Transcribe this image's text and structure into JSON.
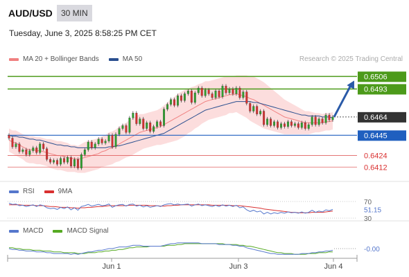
{
  "header": {
    "symbol": "AUD/USD",
    "timeframe": "30 MIN",
    "datetime": "Tuesday, June 3, 2025 8:58:25 PM CET",
    "credit": "Research © 2025 Trading Central"
  },
  "colors": {
    "ma20": "#f08080",
    "bollinger_fill": "#fcd9d9",
    "ma50": "#2a4f8f",
    "resistance": "#4c9a1a",
    "support": "#1f5fbf",
    "pivot_line": "#e06060",
    "arrow": "#2a5aa8",
    "candle_up": "#2ea32e",
    "candle_down": "#d93030",
    "rsi": "#5577cc",
    "rsi_ma": "#d93030",
    "macd": "#5577cc",
    "macd_signal": "#55aa22"
  },
  "chart_data": [
    {
      "type": "candlestick",
      "panel": "price",
      "legend": [
        {
          "name": "MA 20 + Bollinger Bands",
          "color": "#f08080"
        },
        {
          "name": "MA 50",
          "color": "#2a4f8f"
        }
      ],
      "x_ticks": [
        "Jun 1",
        "Jun 3",
        "Jun 4"
      ],
      "ylim": [
        0.64,
        0.6512
      ],
      "levels": [
        {
          "value": 0.6506,
          "label": "0.6506",
          "kind": "resistance"
        },
        {
          "value": 0.6493,
          "label": "0.6493",
          "kind": "resistance"
        },
        {
          "value": 0.6464,
          "label": "0.6464",
          "kind": "current"
        },
        {
          "value": 0.6445,
          "label": "0.6445",
          "kind": "support"
        },
        {
          "value": 0.6424,
          "label": "0.6424",
          "kind": "pivot"
        },
        {
          "value": 0.6412,
          "label": "0.6412",
          "kind": "pivot"
        }
      ],
      "closes": [
        0.6442,
        0.6433,
        0.6436,
        0.6428,
        0.643,
        0.6425,
        0.6429,
        0.6432,
        0.6427,
        0.6436,
        0.6431,
        0.642,
        0.6417,
        0.6419,
        0.6415,
        0.6421,
        0.6417,
        0.6422,
        0.6413,
        0.642,
        0.6411,
        0.6425,
        0.643,
        0.6438,
        0.6432,
        0.6436,
        0.6441,
        0.6437,
        0.6439,
        0.6445,
        0.6433,
        0.6446,
        0.6452,
        0.6455,
        0.6448,
        0.6463,
        0.6468,
        0.6457,
        0.6462,
        0.6452,
        0.6458,
        0.6449,
        0.6454,
        0.6459,
        0.6455,
        0.6472,
        0.6477,
        0.6482,
        0.6476,
        0.6486,
        0.6481,
        0.6488,
        0.6491,
        0.6479,
        0.6489,
        0.6494,
        0.6486,
        0.6492,
        0.6488,
        0.6484,
        0.6491,
        0.6485,
        0.6496,
        0.6489,
        0.6493,
        0.6488,
        0.6494,
        0.6484,
        0.649,
        0.6478,
        0.647,
        0.6475,
        0.6467,
        0.647,
        0.6456,
        0.6462,
        0.6455,
        0.6459,
        0.6453,
        0.6457,
        0.6454,
        0.6459,
        0.6455,
        0.6457,
        0.6453,
        0.6458,
        0.6452,
        0.6456,
        0.6464,
        0.6456,
        0.6462,
        0.6458,
        0.6466,
        0.6461,
        0.6464
      ],
      "ma20": [
        0.644,
        0.6438,
        0.6437,
        0.6435,
        0.6433,
        0.6431,
        0.643,
        0.643,
        0.6429,
        0.6429,
        0.6428,
        0.6427,
        0.6426,
        0.6425,
        0.6424,
        0.6424,
        0.6423,
        0.6422,
        0.6421,
        0.6421,
        0.642,
        0.6421,
        0.6422,
        0.6423,
        0.6424,
        0.6425,
        0.6426,
        0.6428,
        0.6429,
        0.6431,
        0.6432,
        0.6434,
        0.6436,
        0.6438,
        0.644,
        0.6442,
        0.6444,
        0.6446,
        0.6448,
        0.6449,
        0.645,
        0.6451,
        0.6452,
        0.6453,
        0.6454,
        0.6456,
        0.6458,
        0.646,
        0.6462,
        0.6464,
        0.6466,
        0.6468,
        0.647,
        0.6472,
        0.6474,
        0.6476,
        0.6478,
        0.648,
        0.6481,
        0.6482,
        0.6483,
        0.6484,
        0.6485,
        0.6486,
        0.6487,
        0.6487,
        0.6488,
        0.6487,
        0.6486,
        0.6485,
        0.6483,
        0.6482,
        0.648,
        0.6478,
        0.6476,
        0.6474,
        0.6472,
        0.647,
        0.6468,
        0.6466,
        0.6464,
        0.6463,
        0.6462,
        0.6461,
        0.646,
        0.6459,
        0.6458,
        0.6458,
        0.6458,
        0.6458,
        0.6458,
        0.6458,
        0.6459,
        0.6459,
        0.646
      ],
      "band_width": [
        0.0012,
        0.0012,
        0.0013,
        0.0013,
        0.0013,
        0.0014,
        0.0014,
        0.0014,
        0.0014,
        0.0014,
        0.0014,
        0.0014,
        0.0015,
        0.0015,
        0.0015,
        0.0015,
        0.0015,
        0.0015,
        0.0014,
        0.0014,
        0.0014,
        0.0015,
        0.0016,
        0.0016,
        0.0016,
        0.0016,
        0.0016,
        0.0016,
        0.0016,
        0.0017,
        0.0017,
        0.0017,
        0.0018,
        0.0018,
        0.0018,
        0.0019,
        0.0019,
        0.0019,
        0.0019,
        0.0018,
        0.0018,
        0.0018,
        0.0018,
        0.0018,
        0.0019,
        0.002,
        0.0021,
        0.0022,
        0.0023,
        0.0024,
        0.0024,
        0.0024,
        0.0023,
        0.0023,
        0.0022,
        0.0022,
        0.0021,
        0.0021,
        0.002,
        0.002,
        0.002,
        0.002,
        0.002,
        0.002,
        0.0019,
        0.0019,
        0.0019,
        0.002,
        0.0021,
        0.0022,
        0.0023,
        0.0024,
        0.0024,
        0.0024,
        0.0024,
        0.0023,
        0.0022,
        0.0021,
        0.002,
        0.0019,
        0.0018,
        0.0017,
        0.0016,
        0.0015,
        0.0014,
        0.0013,
        0.0012,
        0.0012,
        0.0011,
        0.001,
        0.001,
        0.0009,
        0.0009,
        0.0009,
        0.0009
      ],
      "ma50": [
        0.6445,
        0.6444,
        0.6444,
        0.6443,
        0.6443,
        0.6442,
        0.6441,
        0.6441,
        0.644,
        0.644,
        0.6439,
        0.6438,
        0.6437,
        0.6436,
        0.6435,
        0.6435,
        0.6434,
        0.6434,
        0.6433,
        0.6433,
        0.6432,
        0.6432,
        0.6432,
        0.6432,
        0.6432,
        0.6432,
        0.6432,
        0.6432,
        0.6432,
        0.6433,
        0.6433,
        0.6434,
        0.6434,
        0.6435,
        0.6436,
        0.6437,
        0.6438,
        0.6439,
        0.644,
        0.6441,
        0.6442,
        0.6443,
        0.6444,
        0.6445,
        0.6446,
        0.6447,
        0.6449,
        0.6451,
        0.6453,
        0.6455,
        0.6457,
        0.6459,
        0.6461,
        0.6463,
        0.6465,
        0.6467,
        0.6469,
        0.6471,
        0.6472,
        0.6473,
        0.6474,
        0.6475,
        0.6476,
        0.6477,
        0.6478,
        0.6479,
        0.648,
        0.648,
        0.648,
        0.648,
        0.648,
        0.6479,
        0.6479,
        0.6478,
        0.6477,
        0.6476,
        0.6475,
        0.6474,
        0.6473,
        0.6472,
        0.6471,
        0.647,
        0.6469,
        0.6468,
        0.6467,
        0.6466,
        0.6466,
        0.6465,
        0.6465,
        0.6465,
        0.6465,
        0.6464,
        0.6464,
        0.6464,
        0.6463
      ]
    },
    {
      "type": "line",
      "panel": "rsi",
      "legend": [
        {
          "name": "RSI",
          "color": "#5577cc"
        },
        {
          "name": "9MA",
          "color": "#d93030"
        }
      ],
      "ylim": [
        25,
        75
      ],
      "levels": [
        {
          "value": 70,
          "label": "70"
        },
        {
          "value": 30,
          "label": "30"
        }
      ],
      "current_label": "51.15",
      "series": [
        {
          "name": "RSI",
          "values": [
            66,
            63,
            64,
            60,
            61,
            58,
            60,
            62,
            58,
            62,
            60,
            55,
            53,
            54,
            51,
            56,
            53,
            57,
            50,
            55,
            49,
            58,
            60,
            63,
            59,
            61,
            63,
            60,
            61,
            64,
            56,
            60,
            62,
            63,
            59,
            63,
            64,
            59,
            61,
            57,
            60,
            56,
            58,
            60,
            58,
            62,
            64,
            65,
            62,
            64,
            62,
            63,
            64,
            59,
            62,
            64,
            60,
            62,
            60,
            58,
            61,
            58,
            62,
            59,
            61,
            58,
            61,
            55,
            57,
            50,
            46,
            49,
            45,
            47,
            40,
            44,
            40,
            43,
            41,
            44,
            42,
            45,
            43,
            44,
            42,
            45,
            42,
            44,
            49,
            44,
            47,
            45,
            50,
            48,
            51
          ]
        },
        {
          "name": "9MA",
          "values": [
            62,
            62,
            62,
            62,
            61,
            61,
            61,
            61,
            60,
            60,
            60,
            59,
            58,
            58,
            57,
            56,
            56,
            56,
            55,
            55,
            54,
            55,
            55,
            56,
            56,
            57,
            58,
            58,
            59,
            60,
            60,
            60,
            60,
            60,
            60,
            61,
            61,
            61,
            61,
            61,
            61,
            60,
            60,
            60,
            59,
            59,
            60,
            60,
            61,
            61,
            62,
            62,
            62,
            62,
            62,
            62,
            62,
            62,
            62,
            61,
            61,
            61,
            61,
            61,
            61,
            60,
            60,
            60,
            59,
            58,
            57,
            56,
            55,
            54,
            52,
            51,
            50,
            49,
            48,
            47,
            46,
            45,
            44,
            44,
            43,
            43,
            43,
            43,
            44,
            44,
            44,
            44,
            45,
            46,
            47
          ]
        }
      ]
    },
    {
      "type": "line",
      "panel": "macd",
      "legend": [
        {
          "name": "MACD",
          "color": "#5577cc"
        },
        {
          "name": "MACD Signal",
          "color": "#55aa22"
        }
      ],
      "ylim": [
        -0.0011,
        0.0011
      ],
      "current_label": "-0.00",
      "series": [
        {
          "name": "MACD",
          "values": [
            0.0,
            -0.0001,
            -0.0001,
            -0.0002,
            -0.0002,
            -0.0003,
            -0.0003,
            -0.0003,
            -0.0004,
            -0.0004,
            -0.0004,
            -0.0005,
            -0.0005,
            -0.0006,
            -0.0006,
            -0.0006,
            -0.0006,
            -0.0006,
            -0.0007,
            -0.0006,
            -0.0007,
            -0.0006,
            -0.0005,
            -0.0004,
            -0.0004,
            -0.0003,
            -0.0002,
            -0.0002,
            -0.0001,
            0.0,
            0.0,
            0.0001,
            0.0002,
            0.0002,
            0.0002,
            0.0003,
            0.0004,
            0.0004,
            0.0004,
            0.0003,
            0.0003,
            0.0003,
            0.0003,
            0.0003,
            0.0003,
            0.0004,
            0.0005,
            0.0006,
            0.0006,
            0.0007,
            0.0007,
            0.0007,
            0.0007,
            0.0007,
            0.0007,
            0.0007,
            0.0006,
            0.0006,
            0.0006,
            0.0006,
            0.0006,
            0.0005,
            0.0005,
            0.0005,
            0.0005,
            0.0004,
            0.0004,
            0.0003,
            0.0003,
            0.0001,
            0.0,
            -0.0001,
            -0.0002,
            -0.0003,
            -0.0004,
            -0.0005,
            -0.0006,
            -0.0006,
            -0.0007,
            -0.0007,
            -0.0007,
            -0.0007,
            -0.0007,
            -0.0007,
            -0.0007,
            -0.0006,
            -0.0006,
            -0.0006,
            -0.0005,
            -0.0005,
            -0.0004,
            -0.0004,
            -0.0003,
            -0.0003,
            -0.0002
          ]
        },
        {
          "name": "MACD Signal",
          "values": [
            0.0001,
            0.0001,
            0.0,
            0.0,
            -0.0001,
            -0.0001,
            -0.0001,
            -0.0002,
            -0.0002,
            -0.0002,
            -0.0003,
            -0.0003,
            -0.0003,
            -0.0004,
            -0.0004,
            -0.0004,
            -0.0005,
            -0.0005,
            -0.0005,
            -0.0005,
            -0.0006,
            -0.0006,
            -0.0006,
            -0.0005,
            -0.0005,
            -0.0005,
            -0.0004,
            -0.0004,
            -0.0003,
            -0.0003,
            -0.0002,
            -0.0002,
            -0.0001,
            -0.0001,
            0.0,
            0.0001,
            0.0001,
            0.0002,
            0.0002,
            0.0002,
            0.0002,
            0.0003,
            0.0003,
            0.0003,
            0.0003,
            0.0003,
            0.0004,
            0.0004,
            0.0004,
            0.0005,
            0.0005,
            0.0006,
            0.0006,
            0.0006,
            0.0006,
            0.0006,
            0.0006,
            0.0006,
            0.0006,
            0.0006,
            0.0006,
            0.0006,
            0.0006,
            0.0005,
            0.0005,
            0.0005,
            0.0005,
            0.0004,
            0.0004,
            0.0003,
            0.0003,
            0.0002,
            0.0001,
            0.0,
            -0.0001,
            -0.0002,
            -0.0003,
            -0.0004,
            -0.0005,
            -0.0005,
            -0.0006,
            -0.0006,
            -0.0006,
            -0.0007,
            -0.0007,
            -0.0007,
            -0.0007,
            -0.0006,
            -0.0006,
            -0.0006,
            -0.0005,
            -0.0005,
            -0.0005,
            -0.0004,
            -0.0004
          ]
        }
      ]
    }
  ]
}
